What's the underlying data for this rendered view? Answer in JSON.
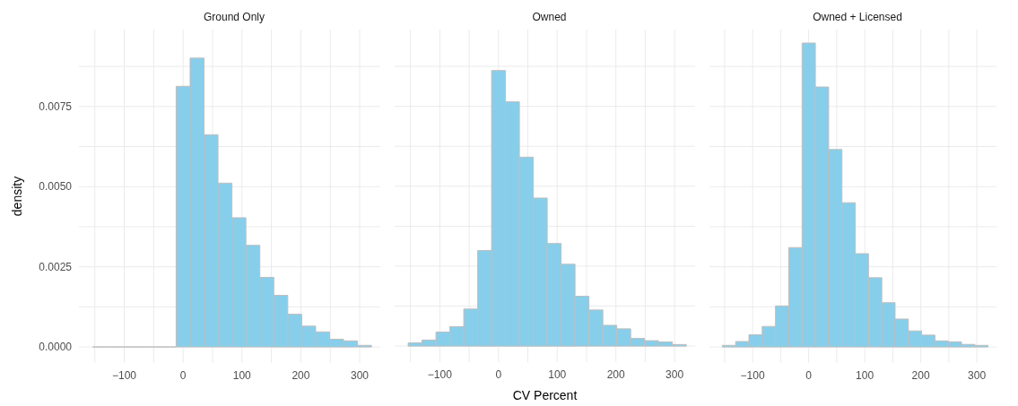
{
  "chart_data": [
    {
      "type": "histogram",
      "title": "Ground Only",
      "ylabel": "density",
      "color": "#87ceeb",
      "bins": [
        -154,
        -130.3,
        -106.6,
        -82.9,
        -59.2,
        -35.5,
        -11.8,
        11.9,
        35.6,
        59.3,
        83,
        106.7,
        130.4,
        154.1,
        177.8,
        201.5,
        225.2,
        248.9,
        272.6,
        296.3,
        320
      ],
      "values": [
        0,
        0,
        0,
        0,
        0,
        0,
        0.00813,
        0.00901,
        0.00662,
        0.00511,
        0.00403,
        0.00317,
        0.00217,
        0.00161,
        0.00102,
        0.00065,
        0.00047,
        0.00024,
        0.00019,
        5e-05
      ],
      "xlim": [
        -177,
        335
      ],
      "xticks": [
        {
          "value": -150,
          "label": null
        },
        -100,
        {
          "value": -50,
          "label": null
        },
        0,
        {
          "value": 50,
          "label": null
        },
        100,
        {
          "value": 150,
          "label": null
        },
        200,
        {
          "value": 250,
          "label": null
        },
        300
      ],
      "ylim": [
        -0.0005,
        0.0099
      ],
      "yticks": [
        {
          "value": 0,
          "label": "0.0000"
        },
        {
          "value": 0.00125,
          "label": null
        },
        0.0025,
        {
          "value": 0.00375,
          "label": null
        },
        {
          "value": 0.005,
          "label": "0.0050"
        },
        {
          "value": 0.00625,
          "label": null
        },
        0.0075,
        {
          "value": 0.00875,
          "label": null
        }
      ],
      "grid": true
    },
    {
      "type": "histogram",
      "title": "Owned",
      "xlabel": "CV Percent",
      "color": "#87ceeb",
      "bins": [
        -154,
        -130.3,
        -106.6,
        -82.9,
        -59.2,
        -35.5,
        -11.8,
        11.9,
        35.6,
        59.3,
        83,
        106.7,
        130.4,
        154.1,
        177.8,
        201.5,
        225.2,
        248.9,
        272.6,
        296.3,
        320
      ],
      "values": [
        0.0001,
        0.00019,
        0.00044,
        0.00061,
        0.00116,
        0.00299,
        0.00862,
        0.00764,
        0.00591,
        0.00463,
        0.00321,
        0.00256,
        0.00156,
        0.00113,
        0.00065,
        0.00054,
        0.00024,
        0.00017,
        0.00013,
        5e-05
      ],
      "xlim": [
        -177,
        335
      ],
      "xticks": [
        {
          "value": -150,
          "label": null
        },
        -100,
        {
          "value": -50,
          "label": null
        },
        0,
        {
          "value": 50,
          "label": null
        },
        100,
        {
          "value": 150,
          "label": null
        },
        200,
        {
          "value": 250,
          "label": null
        },
        300
      ],
      "ylim": [
        -0.0005,
        0.0099
      ],
      "yticks": [
        0,
        {
          "value": 0.00125,
          "label": null
        },
        0.0025,
        {
          "value": 0.00375,
          "label": null
        },
        0.005,
        {
          "value": 0.00625,
          "label": null
        },
        0.0075,
        {
          "value": 0.00875,
          "label": null
        }
      ],
      "grid": true,
      "tick_labels": "x"
    },
    {
      "type": "histogram",
      "title": "Owned + Licensed",
      "color": "#87ceeb",
      "bins": [
        -154,
        -130.3,
        -106.6,
        -82.9,
        -59.2,
        -35.5,
        -11.8,
        11.9,
        35.6,
        59.3,
        83,
        106.7,
        130.4,
        154.1,
        177.8,
        201.5,
        225.2,
        248.9,
        272.6,
        296.3,
        320
      ],
      "values": [
        5e-05,
        0.00017,
        0.00038,
        0.00064,
        0.00128,
        0.0031,
        0.00948,
        0.00811,
        0.00616,
        0.0045,
        0.00291,
        0.00216,
        0.00138,
        0.00087,
        0.0005,
        0.00037,
        0.00019,
        0.00016,
        8e-05,
        5e-05
      ],
      "xlim": [
        -177,
        335
      ],
      "xticks": [
        {
          "value": -150,
          "label": null
        },
        -100,
        {
          "value": -50,
          "label": null
        },
        0,
        {
          "value": 50,
          "label": null
        },
        100,
        {
          "value": 150,
          "label": null
        },
        200,
        {
          "value": 250,
          "label": null
        },
        300
      ],
      "ylim": [
        -0.0005,
        0.0099
      ],
      "yticks": [
        0,
        {
          "value": 0.00125,
          "label": null
        },
        0.0025,
        {
          "value": 0.00375,
          "label": null
        },
        0.005,
        {
          "value": 0.00625,
          "label": null
        },
        0.0075,
        {
          "value": 0.00875,
          "label": null
        }
      ],
      "grid": true,
      "tick_labels": "x"
    }
  ]
}
